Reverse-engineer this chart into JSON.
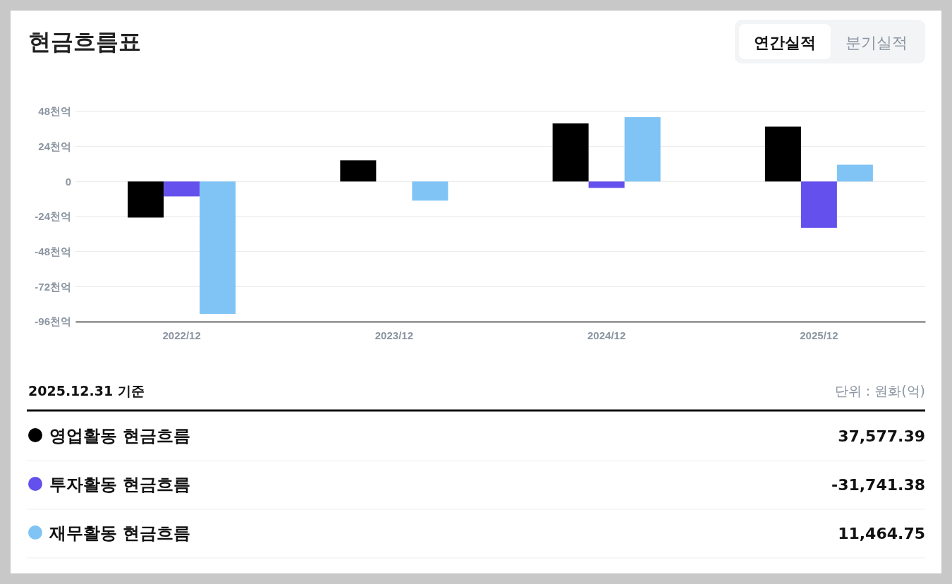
{
  "chart_data": {
    "type": "bar",
    "title": "현금흐름표",
    "categories": [
      "2022/12",
      "2023/12",
      "2024/12",
      "2025/12"
    ],
    "series": [
      {
        "name": "영업활동 현금흐름",
        "color": "#000000",
        "values": [
          -24.7,
          14.5,
          39.8,
          37.6
        ]
      },
      {
        "name": "투자활동 현금흐름",
        "color": "#6450ec",
        "values": [
          -10.2,
          null,
          -4.4,
          -31.7
        ]
      },
      {
        "name": "재무활동 현금흐름",
        "color": "#80c4f6",
        "values": [
          -90.7,
          -13.1,
          44.1,
          11.5
        ]
      }
    ],
    "ylim": [
      -96,
      48
    ],
    "yticks": [
      {
        "value": 48,
        "label": "48천억"
      },
      {
        "value": 24,
        "label": "24천억"
      },
      0,
      {
        "value": -24,
        "label": "-24천억"
      },
      {
        "value": -48,
        "label": "-48천억"
      },
      {
        "value": -72,
        "label": "-72천억"
      },
      {
        "value": -96,
        "label": "-96천억"
      }
    ],
    "grid": "y",
    "legend": "bottom",
    "annotations": [
      "연간실적",
      "분기실적",
      "2025.12.31 기준",
      "단위 : 원화(억)",
      "37,577.39",
      "-31,741.38",
      "11,464.75"
    ]
  }
}
